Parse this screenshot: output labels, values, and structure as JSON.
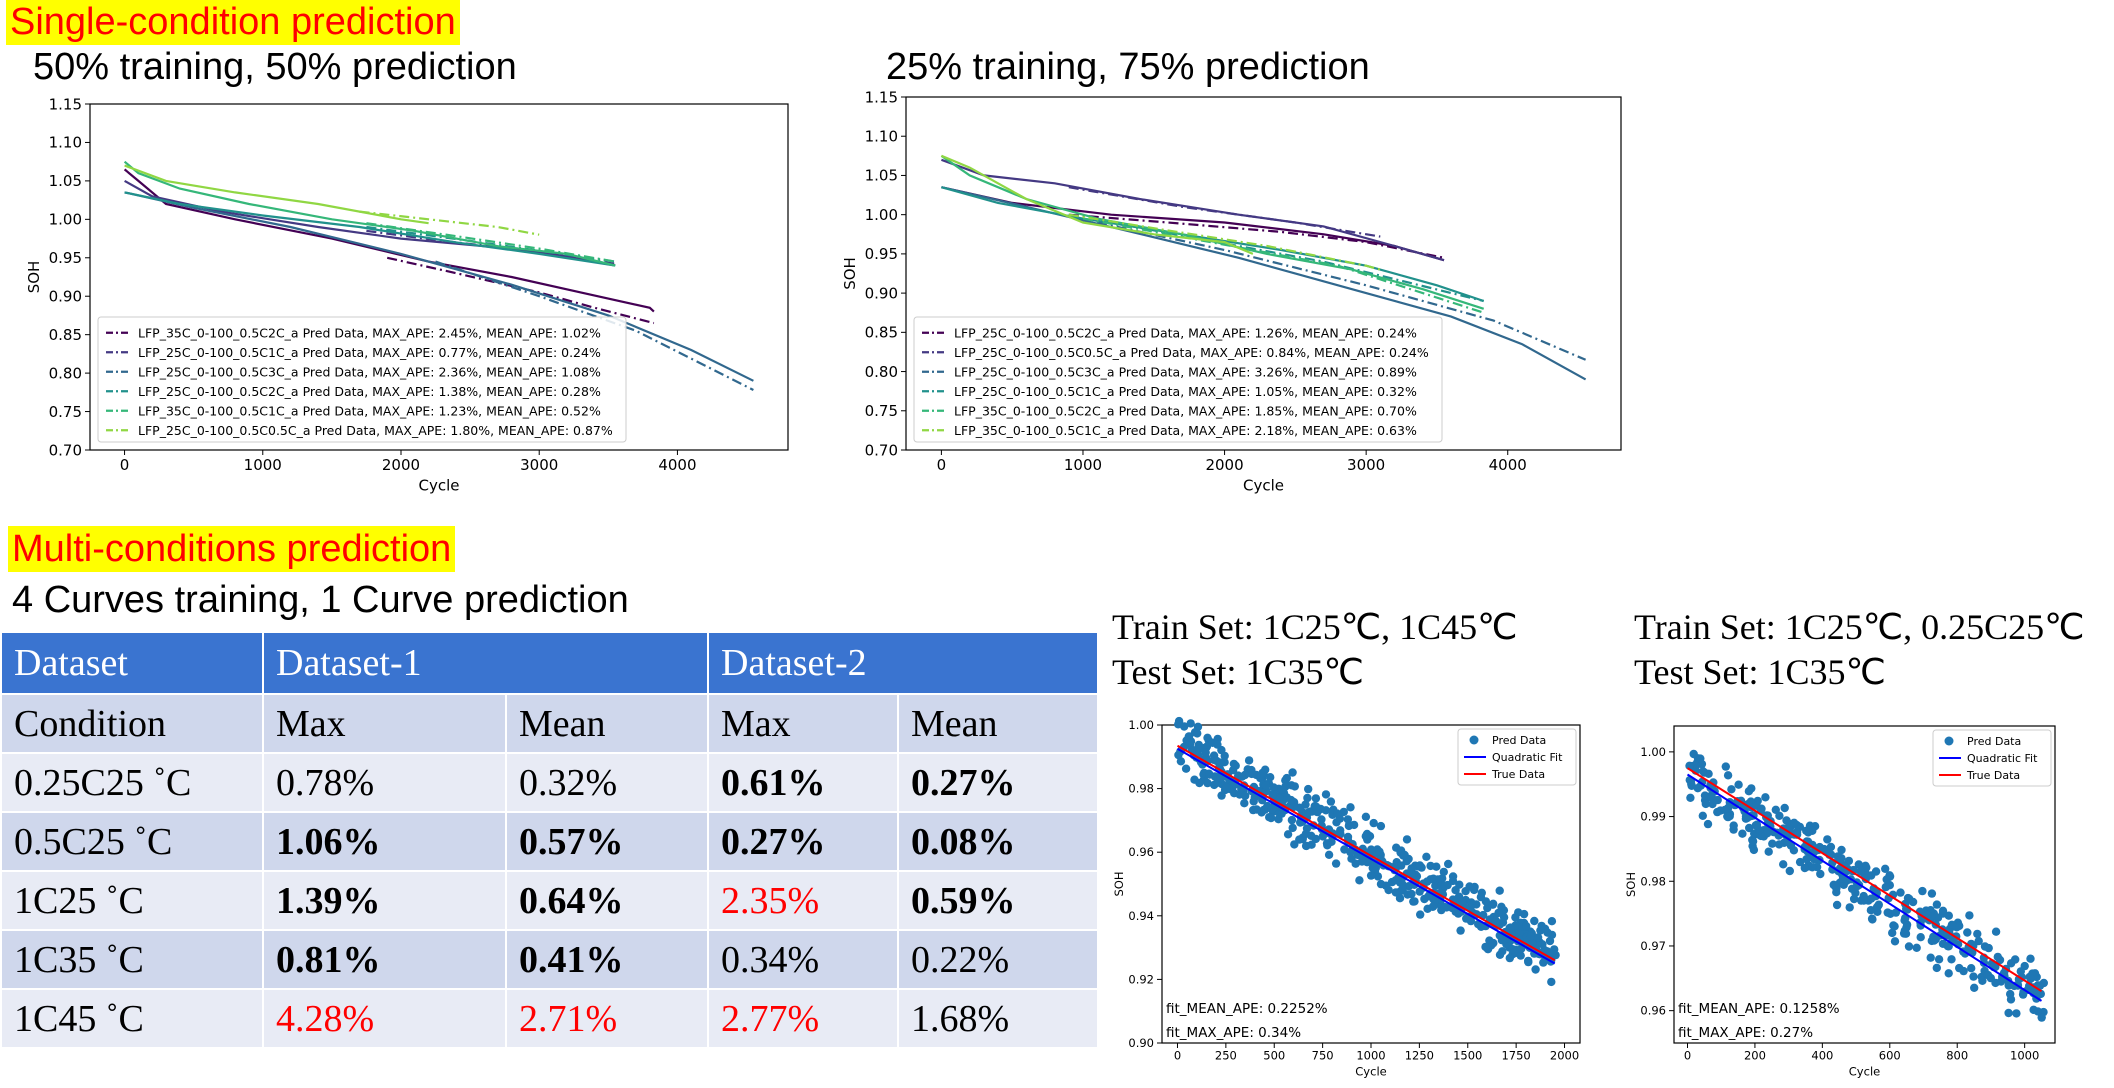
{
  "sections": {
    "single_title": "Single-condition prediction",
    "multi_title": "Multi-conditions prediction",
    "multi_subtitle": "4 Curves training, 1 Curve prediction"
  },
  "table": {
    "header": [
      "Dataset",
      "Dataset-1",
      "Dataset-2"
    ],
    "subheader": [
      "Condition",
      "Max",
      "Mean",
      "Max",
      "Mean"
    ],
    "rows": [
      {
        "condition": "0.25C25 ˚C",
        "cells": [
          {
            "v": "0.78%",
            "bold": false,
            "red": false
          },
          {
            "v": "0.32%",
            "bold": false,
            "red": false
          },
          {
            "v": "0.61%",
            "bold": true,
            "red": false
          },
          {
            "v": "0.27%",
            "bold": true,
            "red": false
          }
        ]
      },
      {
        "condition": "0.5C25 ˚C",
        "cells": [
          {
            "v": "1.06%",
            "bold": true,
            "red": false
          },
          {
            "v": "0.57%",
            "bold": true,
            "red": false
          },
          {
            "v": "0.27%",
            "bold": true,
            "red": false
          },
          {
            "v": "0.08%",
            "bold": true,
            "red": false
          }
        ]
      },
      {
        "condition": "1C25 ˚C",
        "cells": [
          {
            "v": "1.39%",
            "bold": true,
            "red": false
          },
          {
            "v": "0.64%",
            "bold": true,
            "red": false
          },
          {
            "v": "2.35%",
            "bold": false,
            "red": true
          },
          {
            "v": "0.59%",
            "bold": true,
            "red": false
          }
        ]
      },
      {
        "condition": "1C35 ˚C",
        "cells": [
          {
            "v": "0.81%",
            "bold": true,
            "red": false
          },
          {
            "v": "0.41%",
            "bold": true,
            "red": false
          },
          {
            "v": "0.34%",
            "bold": false,
            "red": false
          },
          {
            "v": "0.22%",
            "bold": false,
            "red": false
          }
        ]
      },
      {
        "condition": "1C45 ˚C",
        "cells": [
          {
            "v": "4.28%",
            "bold": false,
            "red": true
          },
          {
            "v": "2.71%",
            "bold": false,
            "red": true
          },
          {
            "v": "2.77%",
            "bold": false,
            "red": true
          },
          {
            "v": "1.68%",
            "bold": false,
            "red": false
          }
        ]
      }
    ]
  },
  "scatter_captions": [
    {
      "train": "Train Set: 1C25℃, 1C45℃",
      "test": "Test Set: 1C35℃"
    },
    {
      "train": "Train Set: 1C25℃, 0.25C25℃",
      "test": "Test Set: 1C35℃"
    }
  ],
  "chart_data": [
    {
      "type": "line",
      "title": "50% training, 50% prediction",
      "xlabel": "Cycle",
      "ylabel": "SOH",
      "xlim": [
        -250,
        4800
      ],
      "ylim": [
        0.7,
        1.15
      ],
      "xticks": [
        0,
        1000,
        2000,
        3000,
        4000
      ],
      "yticks": [
        0.7,
        0.75,
        0.8,
        0.85,
        0.9,
        0.95,
        1.0,
        1.05,
        1.1,
        1.15
      ],
      "legend_position": "lower left",
      "series": [
        {
          "name": "LFP_35C_0-100_0.5C2C_a Pred Data, MAX_APE: 2.45%, MEAN_APE: 1.02%",
          "color": "#440154",
          "true": [
            [
              0,
              1.065
            ],
            [
              100,
              1.05
            ],
            [
              300,
              1.02
            ],
            [
              800,
              1.0
            ],
            [
              1500,
              0.975
            ],
            [
              2200,
              0.945
            ],
            [
              2800,
              0.925
            ],
            [
              3300,
              0.905
            ],
            [
              3800,
              0.885
            ],
            [
              3830,
              0.88
            ]
          ],
          "pred": [
            [
              1900,
              0.95
            ],
            [
              2400,
              0.93
            ],
            [
              3000,
              0.905
            ],
            [
              3400,
              0.885
            ],
            [
              3830,
              0.865
            ]
          ]
        },
        {
          "name": "LFP_25C_0-100_0.5C1C_a Pred Data, MAX_APE: 0.77%, MEAN_APE: 0.24%",
          "color": "#443983",
          "true": [
            [
              0,
              1.05
            ],
            [
              200,
              1.03
            ],
            [
              700,
              1.01
            ],
            [
              1400,
              0.99
            ],
            [
              2000,
              0.975
            ],
            [
              2600,
              0.965
            ],
            [
              3100,
              0.955
            ],
            [
              3550,
              0.94
            ]
          ],
          "pred": [
            [
              1750,
              0.985
            ],
            [
              2300,
              0.972
            ],
            [
              2900,
              0.96
            ],
            [
              3550,
              0.942
            ]
          ]
        },
        {
          "name": "LFP_25C_0-100_0.5C3C_a Pred Data, MAX_APE: 2.36%, MEAN_APE: 1.08%",
          "color": "#31688e",
          "true": [
            [
              0,
              1.035
            ],
            [
              500,
              1.015
            ],
            [
              1200,
              0.99
            ],
            [
              2000,
              0.955
            ],
            [
              2800,
              0.915
            ],
            [
              3500,
              0.875
            ],
            [
              4100,
              0.83
            ],
            [
              4550,
              0.79
            ]
          ],
          "pred": [
            [
              2250,
              0.945
            ],
            [
              3000,
              0.9
            ],
            [
              3700,
              0.855
            ],
            [
              4550,
              0.778
            ]
          ]
        },
        {
          "name": "LFP_25C_0-100_0.5C2C_a Pred Data, MAX_APE: 1.38%, MEAN_APE: 0.28%",
          "color": "#21918c",
          "true": [
            [
              0,
              1.035
            ],
            [
              400,
              1.02
            ],
            [
              1000,
              1.005
            ],
            [
              1700,
              0.99
            ],
            [
              2400,
              0.97
            ],
            [
              3000,
              0.955
            ],
            [
              3550,
              0.94
            ]
          ],
          "pred": [
            [
              1750,
              0.99
            ],
            [
              2500,
              0.972
            ],
            [
              3550,
              0.945
            ]
          ]
        },
        {
          "name": "LFP_35C_0-100_0.5C1C_a Pred Data, MAX_APE: 1.23%, MEAN_APE: 0.52%",
          "color": "#35b779",
          "true": [
            [
              0,
              1.075
            ],
            [
              100,
              1.06
            ],
            [
              400,
              1.04
            ],
            [
              900,
              1.02
            ],
            [
              1500,
              1.0
            ],
            [
              2100,
              0.985
            ],
            [
              2700,
              0.965
            ],
            [
              3200,
              0.955
            ],
            [
              3550,
              0.94
            ]
          ],
          "pred": [
            [
              1750,
              0.995
            ],
            [
              2400,
              0.978
            ],
            [
              3000,
              0.962
            ],
            [
              3550,
              0.945
            ]
          ]
        },
        {
          "name": "LFP_25C_0-100_0.5C0.5C_a Pred Data, MAX_APE: 1.80%, MEAN_APE: 0.87%",
          "color": "#90d743",
          "true": [
            [
              0,
              1.07
            ],
            [
              300,
              1.05
            ],
            [
              800,
              1.035
            ],
            [
              1400,
              1.02
            ],
            [
              2000,
              1.0
            ],
            [
              2200,
              0.995
            ]
          ],
          "pred": [
            [
              1700,
              1.01
            ],
            [
              2200,
              1.0
            ],
            [
              2700,
              0.99
            ],
            [
              3000,
              0.98
            ]
          ]
        }
      ]
    },
    {
      "type": "line",
      "title": "25% training, 75% prediction",
      "xlabel": "Cycle",
      "ylabel": "SOH",
      "xlim": [
        -250,
        4800
      ],
      "ylim": [
        0.7,
        1.15
      ],
      "xticks": [
        0,
        1000,
        2000,
        3000,
        4000
      ],
      "yticks": [
        0.7,
        0.75,
        0.8,
        0.85,
        0.9,
        0.95,
        1.0,
        1.05,
        1.1,
        1.15
      ],
      "legend_position": "lower left",
      "series": [
        {
          "name": "LFP_25C_0-100_0.5C2C_a Pred Data, MAX_APE: 1.26%, MEAN_APE: 0.24%",
          "color": "#440154",
          "true": [
            [
              0,
              1.035
            ],
            [
              500,
              1.015
            ],
            [
              1200,
              1.0
            ],
            [
              2000,
              0.99
            ],
            [
              2700,
              0.975
            ],
            [
              3200,
              0.96
            ],
            [
              3550,
              0.942
            ]
          ],
          "pred": [
            [
              900,
              1.0
            ],
            [
              1600,
              0.99
            ],
            [
              2400,
              0.978
            ],
            [
              3000,
              0.965
            ],
            [
              3550,
              0.945
            ]
          ]
        },
        {
          "name": "LFP_25C_0-100_0.5C0.5C_a Pred Data, MAX_APE: 0.84%, MEAN_APE: 0.24%",
          "color": "#443983",
          "true": [
            [
              0,
              1.07
            ],
            [
              300,
              1.05
            ],
            [
              800,
              1.04
            ],
            [
              1400,
              1.02
            ],
            [
              2100,
              1.0
            ],
            [
              2700,
              0.985
            ],
            [
              3200,
              0.96
            ],
            [
              3550,
              0.942
            ]
          ],
          "pred": [
            [
              900,
              1.035
            ],
            [
              1700,
              1.01
            ],
            [
              2500,
              0.99
            ],
            [
              3100,
              0.972
            ]
          ]
        },
        {
          "name": "LFP_25C_0-100_0.5C3C_a Pred Data, MAX_APE: 3.26%, MEAN_APE: 0.89%",
          "color": "#31688e",
          "true": [
            [
              0,
              1.035
            ],
            [
              600,
              1.01
            ],
            [
              1300,
              0.98
            ],
            [
              2100,
              0.945
            ],
            [
              2900,
              0.905
            ],
            [
              3600,
              0.87
            ],
            [
              4100,
              0.835
            ],
            [
              4550,
              0.79
            ]
          ],
          "pred": [
            [
              1100,
              0.99
            ],
            [
              2000,
              0.955
            ],
            [
              3000,
              0.91
            ],
            [
              3900,
              0.865
            ],
            [
              4550,
              0.815
            ]
          ]
        },
        {
          "name": "LFP_25C_0-100_0.5C1C_a Pred Data, MAX_APE: 1.05%, MEAN_APE: 0.32%",
          "color": "#21918c",
          "true": [
            [
              0,
              1.035
            ],
            [
              400,
              1.015
            ],
            [
              1000,
              0.995
            ],
            [
              1700,
              0.975
            ],
            [
              2400,
              0.955
            ],
            [
              3000,
              0.935
            ],
            [
              3500,
              0.91
            ],
            [
              3830,
              0.89
            ]
          ],
          "pred": [
            [
              900,
              1.0
            ],
            [
              1800,
              0.97
            ],
            [
              2700,
              0.94
            ],
            [
              3830,
              0.89
            ]
          ]
        },
        {
          "name": "LFP_35C_0-100_0.5C2C_a Pred Data, MAX_APE: 1.85%, MEAN_APE: 0.70%",
          "color": "#35b779",
          "true": [
            [
              0,
              1.075
            ],
            [
              200,
              1.05
            ],
            [
              600,
              1.02
            ],
            [
              1100,
              0.995
            ],
            [
              1700,
              0.975
            ],
            [
              2300,
              0.95
            ],
            [
              2900,
              0.93
            ],
            [
              3400,
              0.905
            ],
            [
              3830,
              0.88
            ]
          ],
          "pred": [
            [
              1000,
              0.995
            ],
            [
              1900,
              0.965
            ],
            [
              2800,
              0.935
            ],
            [
              3830,
              0.875
            ]
          ]
        },
        {
          "name": "LFP_35C_0-100_0.5C1C_a Pred Data, MAX_APE: 2.18%, MEAN_APE: 0.63%",
          "color": "#90d743",
          "true": [
            [
              0,
              1.075
            ],
            [
              200,
              1.06
            ],
            [
              600,
              1.02
            ],
            [
              1000,
              0.99
            ],
            [
              1500,
              0.975
            ],
            [
              2000,
              0.965
            ],
            [
              2200,
              0.95
            ]
          ],
          "pred": [
            [
              900,
              1.0
            ],
            [
              1600,
              0.98
            ],
            [
              2300,
              0.96
            ],
            [
              3000,
              0.935
            ],
            [
              3100,
              0.93
            ]
          ]
        }
      ]
    },
    {
      "type": "scatter",
      "title": "",
      "xlabel": "Cycle",
      "ylabel": "SOH",
      "xlim": [
        -80,
        2080
      ],
      "ylim": [
        0.9,
        1.0
      ],
      "xticks": [
        0,
        250,
        500,
        750,
        1000,
        1250,
        1500,
        1750,
        2000
      ],
      "yticks": [
        0.9,
        0.92,
        0.94,
        0.96,
        0.98,
        1.0
      ],
      "legend_position": "top-right",
      "legend": [
        "Pred Data",
        "Quadratic Fit",
        "True Data"
      ],
      "colors": {
        "pred": "#1f77b4",
        "fit": "#0000ff",
        "true": "#ff0000"
      },
      "true_line": [
        [
          0,
          0.9935
        ],
        [
          1950,
          0.926
        ]
      ],
      "fit_line": [
        [
          0,
          0.9925
        ],
        [
          1950,
          0.925
        ]
      ],
      "scatter_band": {
        "x_range": [
          0,
          1960
        ],
        "start": 0.994,
        "end": 0.927,
        "spread": 0.0045,
        "count": 520
      },
      "annotations": [
        "fit_MEAN_APE: 0.2252%",
        "fit_MAX_APE: 0.34%"
      ]
    },
    {
      "type": "scatter",
      "title": "",
      "xlabel": "Cycle",
      "ylabel": "SOH",
      "xlim": [
        -40,
        1090
      ],
      "ylim": [
        0.955,
        1.004
      ],
      "xticks": [
        0,
        200,
        400,
        600,
        800,
        1000
      ],
      "yticks": [
        0.96,
        0.97,
        0.98,
        0.99,
        1.0
      ],
      "legend_position": "top-right",
      "legend": [
        "Pred Data",
        "Quadratic Fit",
        "True Data"
      ],
      "colors": {
        "pred": "#1f77b4",
        "fit": "#0000ff",
        "true": "#ff0000"
      },
      "true_line": [
        [
          0,
          0.9975
        ],
        [
          1050,
          0.963
        ]
      ],
      "fit_line": [
        [
          0,
          0.9965
        ],
        [
          1050,
          0.9615
        ]
      ],
      "scatter_band": {
        "x_range": [
          0,
          1060
        ],
        "start": 0.9965,
        "end": 0.9615,
        "spread": 0.0022,
        "count": 380
      },
      "annotations": [
        "fit_MEAN_APE: 0.1258%",
        "fit_MAX_APE: 0.27%"
      ]
    }
  ]
}
